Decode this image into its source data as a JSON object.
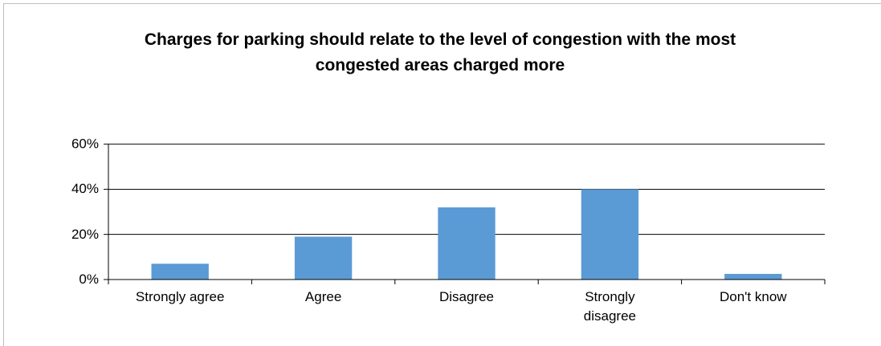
{
  "chart_data": {
    "type": "bar",
    "title": "Charges for parking should relate to the level of congestion with the most congested areas charged more",
    "categories": [
      "Strongly agree",
      "Agree",
      "Disagree",
      "Strongly disagree",
      "Don't know"
    ],
    "values": [
      7,
      19,
      32,
      40,
      2.5
    ],
    "color": "#5b9bd5",
    "ylim": [
      0,
      60
    ],
    "yticks": [
      {
        "value": 0,
        "label": "0%"
      },
      {
        "value": 20,
        "label": "20%"
      },
      {
        "value": 40,
        "label": "40%"
      },
      {
        "value": 60,
        "label": "60%"
      }
    ],
    "grid": true
  }
}
